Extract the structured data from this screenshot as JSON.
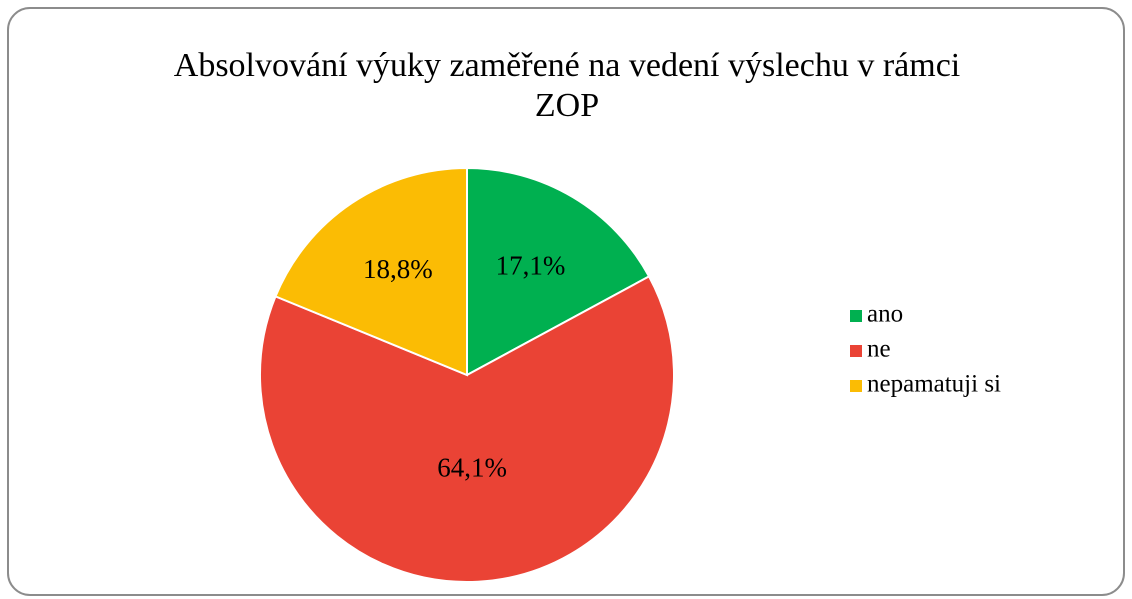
{
  "chart_data": {
    "type": "pie",
    "title": "Absolvování výuky zaměřené na vedení výslechu v rámci ZOP",
    "categories": [
      "ano",
      "ne",
      "nepamatuji si"
    ],
    "values": [
      17.1,
      64.1,
      18.8
    ],
    "value_labels": [
      "17,1%",
      "64,1%",
      "18,8%"
    ],
    "colors": [
      "#00b050",
      "#ea4335",
      "#fbbc04"
    ],
    "legend": "right"
  }
}
